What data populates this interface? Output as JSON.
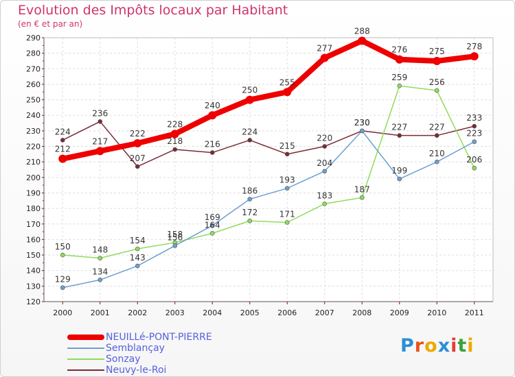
{
  "title": "Evolution des Impôts locaux par Habitant",
  "subtitle": "(en € et par an)",
  "brand": {
    "text": "Proxiti",
    "letter_colors": [
      "#2a8fd6",
      "#e8531e",
      "#f0a800",
      "#2a8fd6",
      "#e53c33",
      "#37a33a",
      "#f0a800"
    ]
  },
  "chart_data": {
    "type": "line",
    "categories": [
      "2000",
      "2001",
      "2002",
      "2003",
      "2004",
      "2005",
      "2006",
      "2007",
      "2008",
      "2009",
      "2010",
      "2011"
    ],
    "ylim": [
      120,
      290
    ],
    "yticks": [
      120,
      130,
      140,
      150,
      160,
      170,
      180,
      190,
      200,
      210,
      220,
      230,
      240,
      250,
      260,
      270,
      280,
      290
    ],
    "grid": true,
    "legend_position": "bottom-left",
    "series": [
      {
        "name": "NEUILLé-PONT-PIERRE",
        "color": "#ee0000",
        "values": [
          212,
          217,
          222,
          228,
          240,
          250,
          255,
          277,
          288,
          276,
          275,
          278
        ]
      },
      {
        "name": "Semblançay",
        "color": "#6e9fd0",
        "values": [
          129,
          134,
          143,
          156,
          169,
          186,
          193,
          204,
          230,
          199,
          210,
          223
        ]
      },
      {
        "name": "Sonzay",
        "color": "#8fdc5a",
        "values": [
          150,
          148,
          154,
          158,
          164,
          172,
          171,
          183,
          187,
          259,
          256,
          206
        ]
      },
      {
        "name": "Neuvy-le-Roi",
        "color": "#7a2a35",
        "values": [
          224,
          236,
          207,
          218,
          216,
          224,
          215,
          220,
          230,
          227,
          227,
          233
        ]
      }
    ]
  }
}
